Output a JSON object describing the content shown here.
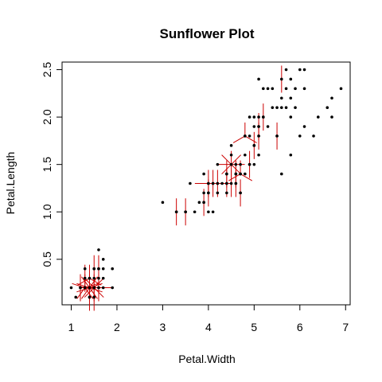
{
  "chart_data": {
    "type": "scatter",
    "subtype": "sunflower",
    "title": "Sunflower Plot",
    "xlabel": "Petal.Width",
    "ylabel": "Petal.Length",
    "xlim": [
      0.8,
      7.1
    ],
    "ylim": [
      0.02,
      2.58
    ],
    "x_ticks": [
      1,
      2,
      3,
      4,
      5,
      6,
      7
    ],
    "y_ticks": [
      0.5,
      1.0,
      1.5,
      2.0,
      2.5
    ],
    "y_tick_labels": [
      "0.5",
      "1.0",
      "1.5",
      "2.0",
      "2.5"
    ],
    "colors": {
      "point": "#000000",
      "petal": "#cc0000",
      "frame": "#000000"
    },
    "points": [
      [
        1.0,
        0.2
      ],
      [
        1.1,
        0.1
      ],
      [
        1.2,
        0.2
      ],
      [
        1.3,
        0.2
      ],
      [
        1.3,
        0.3
      ],
      [
        1.3,
        0.4
      ],
      [
        1.4,
        0.2
      ],
      [
        1.4,
        0.3
      ],
      [
        1.5,
        0.1
      ],
      [
        1.5,
        0.2
      ],
      [
        1.5,
        0.4
      ],
      [
        1.6,
        0.2
      ],
      [
        1.6,
        0.4
      ],
      [
        1.6,
        0.6
      ],
      [
        1.7,
        0.3
      ],
      [
        1.7,
        0.4
      ],
      [
        1.9,
        0.2
      ],
      [
        1.9,
        0.4
      ],
      [
        1.4,
        0.1
      ],
      [
        1.6,
        0.3
      ],
      [
        1.5,
        0.3
      ],
      [
        1.7,
        0.2
      ],
      [
        1.7,
        0.5
      ],
      [
        3.0,
        1.1
      ],
      [
        3.3,
        1.0
      ],
      [
        3.5,
        1.0
      ],
      [
        3.6,
        1.3
      ],
      [
        3.7,
        1.0
      ],
      [
        3.8,
        1.1
      ],
      [
        3.9,
        1.1
      ],
      [
        3.9,
        1.2
      ],
      [
        3.9,
        1.4
      ],
      [
        4.0,
        1.0
      ],
      [
        4.0,
        1.2
      ],
      [
        4.0,
        1.3
      ],
      [
        4.1,
        1.0
      ],
      [
        4.1,
        1.3
      ],
      [
        4.2,
        1.2
      ],
      [
        4.2,
        1.3
      ],
      [
        4.2,
        1.5
      ],
      [
        4.3,
        1.3
      ],
      [
        4.4,
        1.2
      ],
      [
        4.4,
        1.3
      ],
      [
        4.4,
        1.4
      ],
      [
        4.5,
        1.5
      ],
      [
        4.5,
        1.6
      ],
      [
        4.6,
        1.3
      ],
      [
        4.6,
        1.4
      ],
      [
        4.6,
        1.5
      ],
      [
        4.7,
        1.2
      ],
      [
        4.7,
        1.4
      ],
      [
        4.7,
        1.5
      ],
      [
        4.8,
        1.4
      ],
      [
        4.8,
        1.8
      ],
      [
        4.9,
        1.5
      ],
      [
        4.9,
        1.8
      ],
      [
        5.0,
        1.5
      ],
      [
        5.0,
        1.7
      ],
      [
        5.1,
        1.6
      ],
      [
        5.1,
        1.8
      ],
      [
        5.1,
        2.0
      ],
      [
        5.2,
        2.0
      ],
      [
        5.3,
        1.9
      ],
      [
        5.4,
        2.3
      ],
      [
        5.5,
        2.1
      ],
      [
        5.6,
        2.1
      ],
      [
        5.6,
        2.2
      ],
      [
        5.7,
        2.1
      ],
      [
        5.8,
        2.2
      ],
      [
        5.8,
        1.6
      ],
      [
        5.8,
        2.0
      ],
      [
        6.0,
        2.5
      ],
      [
        6.1,
        1.9
      ],
      [
        6.1,
        2.5
      ],
      [
        5.1,
        2.4
      ],
      [
        5.3,
        2.3
      ],
      [
        5.4,
        2.1
      ],
      [
        5.5,
        1.8
      ],
      [
        5.7,
        2.3
      ],
      [
        5.7,
        2.5
      ],
      [
        5.9,
        2.3
      ],
      [
        5.6,
        1.4
      ],
      [
        5.9,
        2.1
      ],
      [
        5.1,
        1.9
      ],
      [
        5.2,
        2.3
      ],
      [
        5.0,
        1.9
      ],
      [
        5.0,
        2.0
      ],
      [
        6.4,
        2.0
      ],
      [
        6.3,
        1.8
      ],
      [
        6.1,
        2.3
      ],
      [
        6.6,
        2.1
      ],
      [
        6.7,
        2.2
      ],
      [
        6.7,
        2.0
      ],
      [
        6.9,
        2.3
      ],
      [
        5.8,
        2.4
      ],
      [
        6.0,
        1.8
      ],
      [
        4.8,
        1.6
      ],
      [
        4.5,
        1.7
      ],
      [
        4.9,
        2.0
      ]
    ],
    "sunflowers": [
      [
        1.4,
        0.2,
        10
      ],
      [
        1.5,
        0.2,
        8
      ],
      [
        1.3,
        0.2,
        5
      ],
      [
        1.6,
        0.2,
        4
      ],
      [
        1.2,
        0.2,
        2
      ],
      [
        1.4,
        0.3,
        3
      ],
      [
        1.3,
        0.3,
        2
      ],
      [
        1.5,
        0.4,
        2
      ],
      [
        1.4,
        0.1,
        2
      ],
      [
        1.5,
        0.1,
        2
      ],
      [
        1.6,
        0.4,
        2
      ],
      [
        3.3,
        1.0,
        2
      ],
      [
        3.5,
        1.0,
        2
      ],
      [
        3.9,
        1.1,
        2
      ],
      [
        4.0,
        1.3,
        4
      ],
      [
        4.1,
        1.3,
        2
      ],
      [
        4.2,
        1.3,
        4
      ],
      [
        4.4,
        1.3,
        2
      ],
      [
        4.5,
        1.3,
        2
      ],
      [
        4.6,
        1.3,
        2
      ],
      [
        4.0,
        1.2,
        2
      ],
      [
        4.5,
        1.5,
        8
      ],
      [
        4.7,
        1.4,
        3
      ],
      [
        4.4,
        1.4,
        2
      ],
      [
        4.6,
        1.4,
        2
      ],
      [
        4.7,
        1.2,
        2
      ],
      [
        4.8,
        1.8,
        3
      ],
      [
        4.9,
        1.5,
        2
      ],
      [
        5.1,
        1.9,
        2
      ],
      [
        5.0,
        1.7,
        2
      ],
      [
        5.1,
        1.8,
        2
      ],
      [
        5.2,
        2.0,
        2
      ],
      [
        5.5,
        1.8,
        2
      ],
      [
        5.6,
        2.4,
        2
      ]
    ]
  }
}
